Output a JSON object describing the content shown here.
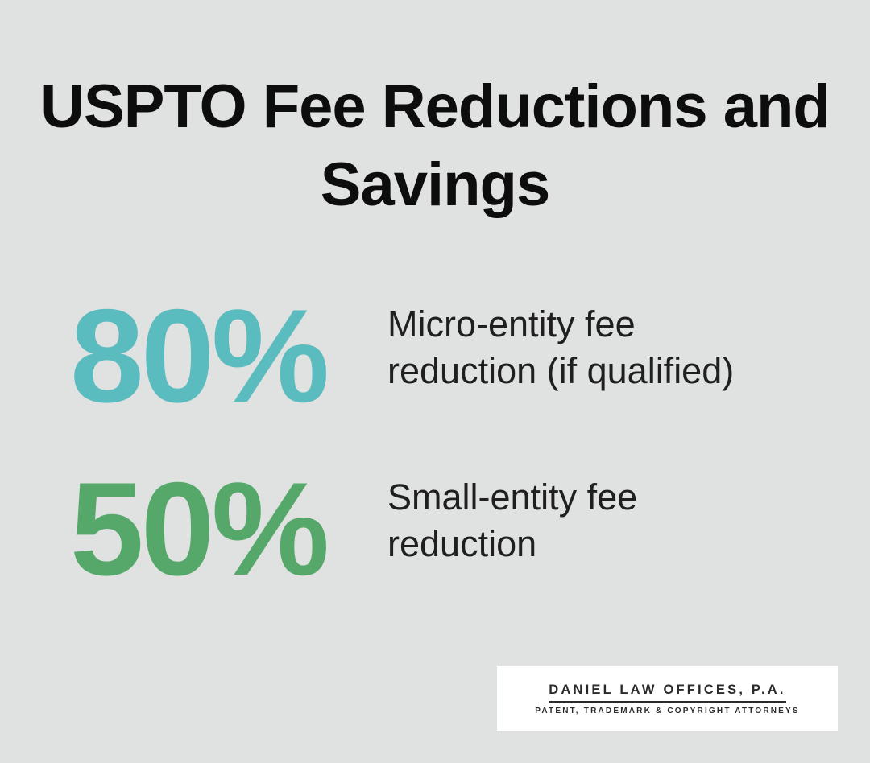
{
  "title": {
    "text": "USPTO Fee Reductions and Savings",
    "lines": [
      "USPTO Fee Reductions and",
      "Savings"
    ]
  },
  "stats": [
    {
      "value": "80%",
      "label": "Micro-entity fee reduction (if qualified)",
      "color": "#5abcbe"
    },
    {
      "value": "50%",
      "label": "Small-entity fee reduction",
      "color": "#55a869"
    }
  ],
  "logo": {
    "name": "DANIEL LAW OFFICES, P.A.",
    "tagline": "PATENT, TRADEMARK & COPYRIGHT ATTORNEYS"
  },
  "colors": {
    "background": "#e0e1e1",
    "title_text": "#0d0d0d",
    "label_text": "#1f1f1f",
    "stat_teal": "#5abcbe",
    "stat_green": "#55a869",
    "logo_background": "#ffffff",
    "logo_text": "#2b2b2b"
  },
  "chart_data": {
    "type": "table",
    "title": "USPTO Fee Reductions and Savings",
    "categories": [
      "Micro-entity fee reduction (if qualified)",
      "Small-entity fee reduction"
    ],
    "values": [
      80,
      50
    ],
    "unit": "%",
    "source_branding": "Daniel Law Offices, P.A. — Patent, Trademark & Copyright Attorneys"
  }
}
